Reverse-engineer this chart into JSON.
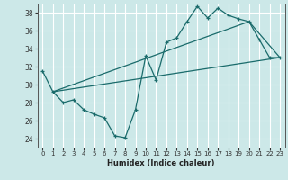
{
  "title": "",
  "xlabel": "Humidex (Indice chaleur)",
  "bg_color": "#cce8e8",
  "grid_color": "#ffffff",
  "line_color": "#1a6b6b",
  "xlim": [
    -0.5,
    23.5
  ],
  "ylim": [
    23.0,
    39.0
  ],
  "xticks": [
    0,
    1,
    2,
    3,
    4,
    5,
    6,
    7,
    8,
    9,
    10,
    11,
    12,
    13,
    14,
    15,
    16,
    17,
    18,
    19,
    20,
    21,
    22,
    23
  ],
  "yticks": [
    24,
    26,
    28,
    30,
    32,
    34,
    36,
    38
  ],
  "line1_x": [
    0,
    1,
    2,
    3,
    4,
    5,
    6,
    7,
    8,
    9,
    10,
    11,
    12,
    13,
    14,
    15,
    16,
    17,
    18,
    19,
    20,
    21,
    22,
    23
  ],
  "line1_y": [
    31.5,
    29.2,
    28.0,
    28.3,
    27.2,
    26.7,
    26.3,
    24.3,
    24.1,
    27.2,
    33.2,
    30.5,
    34.7,
    35.2,
    37.0,
    38.7,
    37.4,
    38.5,
    37.7,
    37.3,
    37.0,
    35.0,
    33.0,
    33.0
  ],
  "line2_x": [
    1,
    23
  ],
  "line2_y": [
    29.2,
    33.0
  ],
  "line3_x": [
    1,
    20,
    23
  ],
  "line3_y": [
    29.2,
    37.0,
    33.0
  ],
  "xlabel_fontsize": 6,
  "tick_fontsize": 5
}
